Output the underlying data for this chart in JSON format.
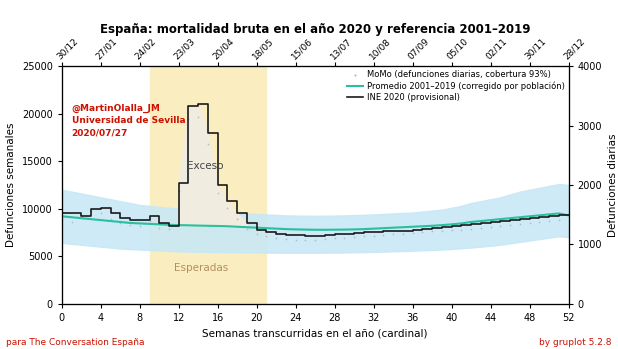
{
  "title": "España: mortalidad bruta en el año 2020 y referencia 2001–2019",
  "xlabel": "Semanas transcurridas en el año (cardinal)",
  "ylabel_left": "Defunciones semanales",
  "ylabel_right": "Defunciones diarias",
  "footer_left": "para The Conversation España",
  "footer_right": "by gruplot 5.2.8",
  "annotation_text": "@MartinOlalla_JM\nUniversidad de Sevilla\n2020/07/27",
  "exceso_label": "Exceso",
  "esperadas_label": "Esperadas",
  "xlim": [
    0,
    52
  ],
  "ylim_left": [
    0,
    25000
  ],
  "right_axis_ticks": [
    0,
    1000,
    2000,
    3000,
    4000
  ],
  "right_axis_values": [
    0,
    6250,
    12500,
    18750,
    25000
  ],
  "top_axis_labels": [
    "30/12",
    "27/01",
    "24/02",
    "23/03",
    "20/04",
    "18/05",
    "15/06",
    "13/07",
    "10/08",
    "07/09",
    "05/10",
    "02/11",
    "30/11",
    "28/12"
  ],
  "top_axis_positions": [
    0,
    4,
    8,
    12,
    16,
    20,
    24,
    28,
    32,
    36,
    40,
    44,
    48,
    52
  ],
  "legend_labels": [
    "MoMo (defunciones diarias, cobertura 93%)",
    "Promedio 2001–2019 (corregido por población)",
    "INE 2020 (provisional)"
  ],
  "colors": {
    "ine2020": "#1a1a1a",
    "promedio": "#2abf9e",
    "momo_dots": "#b0b0b0",
    "band_fill": "#c8e8f5",
    "exceso_fill": "#f0ede0",
    "esperadas_fill": "#faeec0",
    "annotation": "#cc1100",
    "footer_left": "#cc1100",
    "footer_right": "#cc1100"
  },
  "weeks": [
    0,
    1,
    2,
    3,
    4,
    5,
    6,
    7,
    8,
    9,
    10,
    11,
    12,
    13,
    14,
    15,
    16,
    17,
    18,
    19,
    20,
    21,
    22,
    23,
    24,
    25,
    26,
    27,
    28,
    29,
    30,
    31,
    32,
    33,
    34,
    35,
    36,
    37,
    38,
    39,
    40,
    41,
    42,
    43,
    44,
    45,
    46,
    47,
    48,
    49,
    50,
    51,
    52
  ],
  "ine2020_step": [
    9500,
    9500,
    9200,
    10000,
    10100,
    9500,
    9000,
    8800,
    8800,
    9200,
    8500,
    8200,
    12700,
    20800,
    21000,
    18000,
    12500,
    10800,
    9500,
    8500,
    7800,
    7500,
    7300,
    7200,
    7200,
    7100,
    7100,
    7200,
    7300,
    7300,
    7400,
    7500,
    7500,
    7600,
    7700,
    7700,
    7800,
    7900,
    8000,
    8100,
    8200,
    8300,
    8400,
    8500,
    8600,
    8700,
    8800,
    8900,
    9000,
    9100,
    9200,
    9300,
    9300
  ],
  "promedio_line": [
    9200,
    9100,
    9000,
    8900,
    8800,
    8700,
    8600,
    8500,
    8450,
    8400,
    8350,
    8300,
    8270,
    8250,
    8220,
    8200,
    8180,
    8150,
    8100,
    8050,
    8000,
    7950,
    7900,
    7850,
    7820,
    7800,
    7780,
    7780,
    7790,
    7800,
    7820,
    7850,
    7900,
    7950,
    8000,
    8050,
    8100,
    8150,
    8200,
    8270,
    8350,
    8450,
    8600,
    8700,
    8800,
    8900,
    9000,
    9100,
    9200,
    9300,
    9400,
    9500,
    9300
  ],
  "band_upper": [
    12000,
    11800,
    11600,
    11400,
    11200,
    11000,
    10800,
    10600,
    10400,
    10300,
    10200,
    10100,
    10000,
    9900,
    9800,
    9700,
    9650,
    9600,
    9550,
    9500,
    9450,
    9400,
    9350,
    9300,
    9280,
    9260,
    9250,
    9260,
    9280,
    9300,
    9330,
    9360,
    9400,
    9450,
    9500,
    9550,
    9600,
    9700,
    9800,
    9900,
    10100,
    10300,
    10600,
    10800,
    11000,
    11200,
    11500,
    11800,
    12000,
    12200,
    12400,
    12600,
    12500
  ],
  "band_lower": [
    6400,
    6300,
    6200,
    6100,
    6000,
    5900,
    5800,
    5750,
    5700,
    5650,
    5600,
    5550,
    5500,
    5480,
    5460,
    5450,
    5430,
    5420,
    5410,
    5400,
    5390,
    5380,
    5370,
    5360,
    5360,
    5360,
    5365,
    5370,
    5380,
    5390,
    5410,
    5430,
    5450,
    5480,
    5510,
    5540,
    5570,
    5610,
    5650,
    5700,
    5760,
    5830,
    5910,
    6000,
    6100,
    6200,
    6350,
    6500,
    6650,
    6800,
    6950,
    7100,
    7000
  ],
  "momo_dots_x": [
    0,
    1,
    2,
    3,
    4,
    5,
    6,
    7,
    8,
    9,
    10,
    11,
    12,
    13,
    14,
    15,
    16,
    17,
    18,
    19,
    20,
    21,
    22,
    23,
    24,
    25,
    26,
    27,
    28,
    29,
    30,
    31,
    32,
    33,
    34,
    35,
    36,
    37,
    38,
    39,
    40,
    41,
    42,
    43,
    44,
    45,
    46,
    47,
    48,
    49,
    50,
    51
  ],
  "momo_dots_y": [
    8800,
    8600,
    9300,
    9800,
    9500,
    8900,
    8500,
    8300,
    8200,
    8700,
    8000,
    7900,
    11900,
    19500,
    19700,
    16800,
    11700,
    10100,
    8900,
    7900,
    7300,
    7100,
    6900,
    6800,
    6750,
    6700,
    6700,
    6800,
    6900,
    6900,
    7000,
    7100,
    7100,
    7200,
    7300,
    7300,
    7400,
    7500,
    7600,
    7700,
    7800,
    7800,
    7900,
    8000,
    8100,
    8200,
    8300,
    8400,
    8500,
    8600,
    8700,
    8800
  ],
  "esperadas_xmin": 9,
  "esperadas_xmax": 21,
  "exceso_xmin": 11,
  "exceso_xmax": 20
}
